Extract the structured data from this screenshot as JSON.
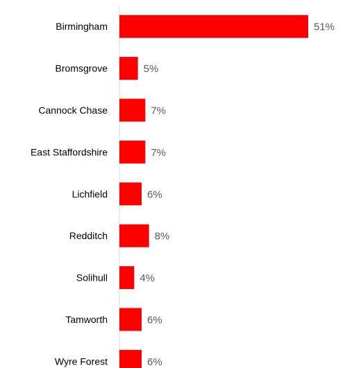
{
  "chart_data": {
    "type": "bar",
    "orientation": "horizontal",
    "title": "",
    "xlabel": "",
    "ylabel": "",
    "categories": [
      "Birmingham",
      "Bromsgrove",
      "Cannock Chase",
      "East Staffordshire",
      "Lichfield",
      "Redditch",
      "Solihull",
      "Tamworth",
      "Wyre Forest"
    ],
    "values": [
      51,
      5,
      7,
      7,
      6,
      8,
      4,
      6,
      6
    ],
    "value_labels": [
      "51%",
      "5%",
      "7%",
      "7%",
      "6%",
      "8%",
      "4%",
      "6%",
      "6%"
    ],
    "unit": "%",
    "xlim": [
      0,
      51
    ],
    "grid": false,
    "legend": "none",
    "bar_color": "#ff0000",
    "axis_color": "#d9d9d9"
  }
}
